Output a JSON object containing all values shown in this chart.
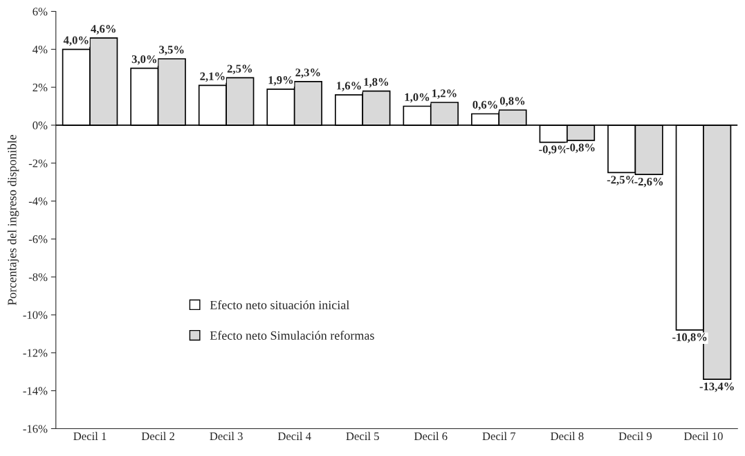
{
  "chart_data": {
    "type": "bar",
    "ylabel": "Porcentajes del ingreso disponible",
    "categories": [
      "Decil 1",
      "Decil 2",
      "Decil 3",
      "Decil 4",
      "Decil 5",
      "Decil 6",
      "Decil 7",
      "Decil 8",
      "Decil 9",
      "Decil 10"
    ],
    "series": [
      {
        "name": "Efecto neto situación inicial",
        "color": "#ffffff",
        "values": [
          4.0,
          3.0,
          2.1,
          1.9,
          1.6,
          1.0,
          0.6,
          -0.9,
          -2.5,
          -10.8
        ],
        "value_labels": [
          "4,0%",
          "3,0%",
          "2,1%",
          "1,9%",
          "1,6%",
          "1,0%",
          "0,6%",
          "-0,9%",
          "-2,5%",
          "-10,8%"
        ]
      },
      {
        "name": "Efecto neto Simulación reformas",
        "color": "#d9d9d9",
        "values": [
          4.6,
          3.5,
          2.5,
          2.3,
          1.8,
          1.2,
          0.8,
          -0.8,
          -2.6,
          -13.4
        ],
        "value_labels": [
          "4,6%",
          "3,5%",
          "2,5%",
          "2,3%",
          "1,8%",
          "1,2%",
          "0,8%",
          "-0,8%",
          "-2,6%",
          "-13,4%"
        ]
      }
    ],
    "ylim": [
      -16,
      6
    ],
    "yticks": [
      {
        "value": -16,
        "label": "-16%"
      },
      {
        "value": -14,
        "label": "-14%"
      },
      {
        "value": -12,
        "label": "-12%"
      },
      {
        "value": -10,
        "label": "-10%"
      },
      {
        "value": -8,
        "label": "-8%"
      },
      {
        "value": -6,
        "label": "-6%"
      },
      {
        "value": -4,
        "label": "-4%"
      },
      {
        "value": -2,
        "label": "-2%"
      },
      {
        "value": 0,
        "label": "0%"
      },
      {
        "value": 2,
        "label": "2%"
      },
      {
        "value": 4,
        "label": "4%"
      },
      {
        "value": 6,
        "label": "6%"
      }
    ],
    "ref_lines": [
      {
        "axis": "y",
        "value": 0,
        "color": "#000000"
      }
    ],
    "legend": "bottom left",
    "grid": false
  }
}
